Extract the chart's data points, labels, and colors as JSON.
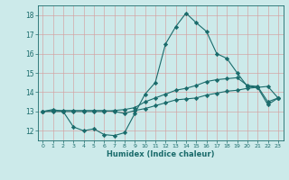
{
  "xlabel": "Humidex (Indice chaleur)",
  "background_color": "#cceaea",
  "grid_color": "#aacccc",
  "line_color": "#1a6b6b",
  "xlim": [
    -0.5,
    23.5
  ],
  "ylim": [
    11.5,
    18.5
  ],
  "yticks": [
    12,
    13,
    14,
    15,
    16,
    17,
    18
  ],
  "xticks": [
    0,
    1,
    2,
    3,
    4,
    5,
    6,
    7,
    8,
    9,
    10,
    11,
    12,
    13,
    14,
    15,
    16,
    17,
    18,
    19,
    20,
    21,
    22,
    23
  ],
  "series": [
    {
      "x": [
        0,
        1,
        2,
        3,
        4,
        5,
        6,
        7,
        8,
        9,
        10,
        11,
        12,
        13,
        14,
        15,
        16,
        17,
        18,
        19,
        20,
        21,
        22,
        23
      ],
      "y": [
        13.0,
        13.1,
        13.0,
        12.2,
        12.0,
        12.1,
        11.8,
        11.75,
        11.9,
        12.9,
        13.9,
        14.5,
        16.5,
        17.4,
        18.1,
        17.6,
        17.15,
        16.0,
        15.75,
        15.0,
        14.3,
        14.25,
        13.35,
        13.7
      ]
    },
    {
      "x": [
        0,
        1,
        2,
        3,
        4,
        5,
        6,
        7,
        8,
        9,
        10,
        11,
        12,
        13,
        14,
        15,
        16,
        17,
        18,
        19,
        20,
        21,
        22,
        23
      ],
      "y": [
        13.0,
        13.0,
        13.0,
        13.0,
        13.0,
        13.0,
        13.0,
        13.05,
        13.1,
        13.2,
        13.5,
        13.7,
        13.9,
        14.1,
        14.2,
        14.35,
        14.55,
        14.65,
        14.7,
        14.75,
        14.35,
        14.3,
        13.5,
        13.7
      ]
    },
    {
      "x": [
        0,
        1,
        2,
        3,
        4,
        5,
        6,
        7,
        8,
        9,
        10,
        11,
        12,
        13,
        14,
        15,
        16,
        17,
        18,
        19,
        20,
        21,
        22,
        23
      ],
      "y": [
        13.0,
        13.05,
        13.05,
        13.05,
        13.05,
        13.05,
        13.05,
        13.0,
        12.9,
        13.05,
        13.15,
        13.3,
        13.45,
        13.6,
        13.65,
        13.7,
        13.85,
        13.95,
        14.05,
        14.1,
        14.2,
        14.25,
        14.3,
        13.7
      ]
    }
  ]
}
